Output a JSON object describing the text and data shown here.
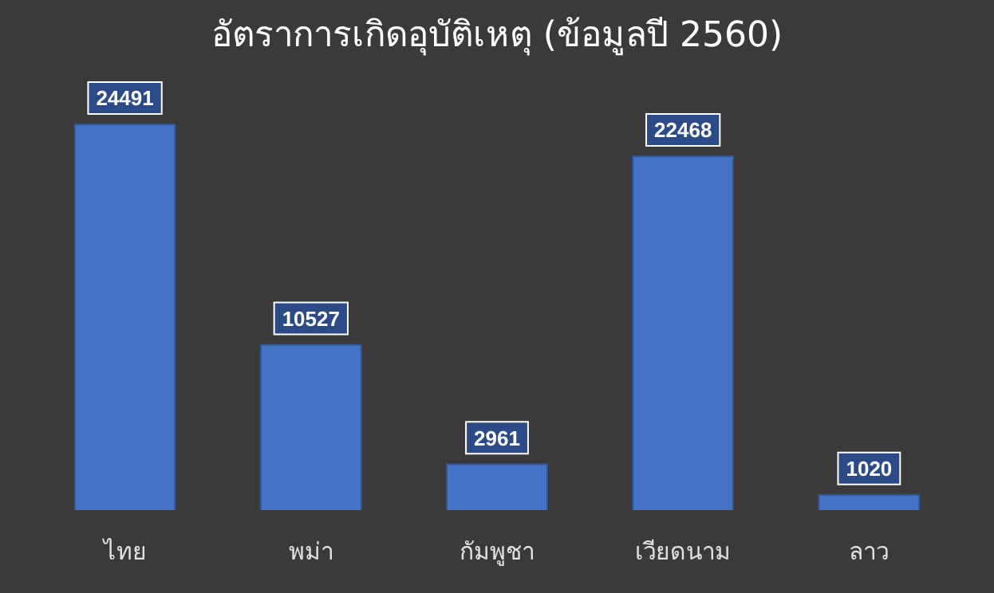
{
  "chart_data": {
    "type": "bar",
    "title": "อัตราการเกิดอุบัติเหตุ (ข้อมูลปี 2560)",
    "categories": [
      "ไทย",
      "พม่า",
      "กัมพูชา",
      "เวียดนาม",
      "ลาว"
    ],
    "values": [
      24491,
      10527,
      2961,
      22468,
      1020
    ],
    "color": "#4472c4",
    "data_labels": true,
    "grid": false,
    "legend": false,
    "tick_labels": "x"
  }
}
